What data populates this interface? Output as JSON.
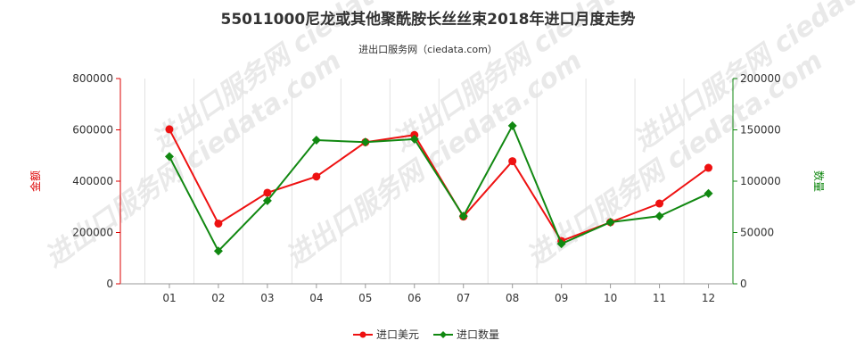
{
  "chart_data": {
    "type": "line",
    "title": "55011000尼龙或其他聚酰胺长丝丝束2018年进口月度走势",
    "subtitle": "进出口服务网（ciedata.com）",
    "categories": [
      "01",
      "02",
      "03",
      "04",
      "05",
      "06",
      "07",
      "08",
      "09",
      "10",
      "11",
      "12"
    ],
    "y_left": {
      "label": "金额",
      "ylim": [
        0,
        800000
      ],
      "ticks": [
        "0",
        "200000",
        "400000",
        "600000",
        "800000"
      ],
      "color": "#dd0000"
    },
    "y_right": {
      "label": "数量",
      "ylim": [
        0,
        200000
      ],
      "ticks": [
        "0",
        "50000",
        "100000",
        "150000",
        "200000"
      ],
      "color": "#118811"
    },
    "series": [
      {
        "name": "进口美元",
        "axis": "left",
        "color": "#ee1111",
        "values": [
          602000,
          235000,
          355000,
          418000,
          552000,
          580000,
          262000,
          478000,
          167000,
          240000,
          313000,
          452000
        ]
      },
      {
        "name": "进口数量",
        "axis": "right",
        "color": "#118811",
        "values": [
          124000,
          32000,
          81000,
          140000,
          138000,
          141000,
          66000,
          154000,
          39000,
          60000,
          66000,
          88000
        ]
      }
    ],
    "legend_position": "bottom-center",
    "grid": "vertical"
  },
  "watermark_text": "进出口服务网 ciedata.com"
}
